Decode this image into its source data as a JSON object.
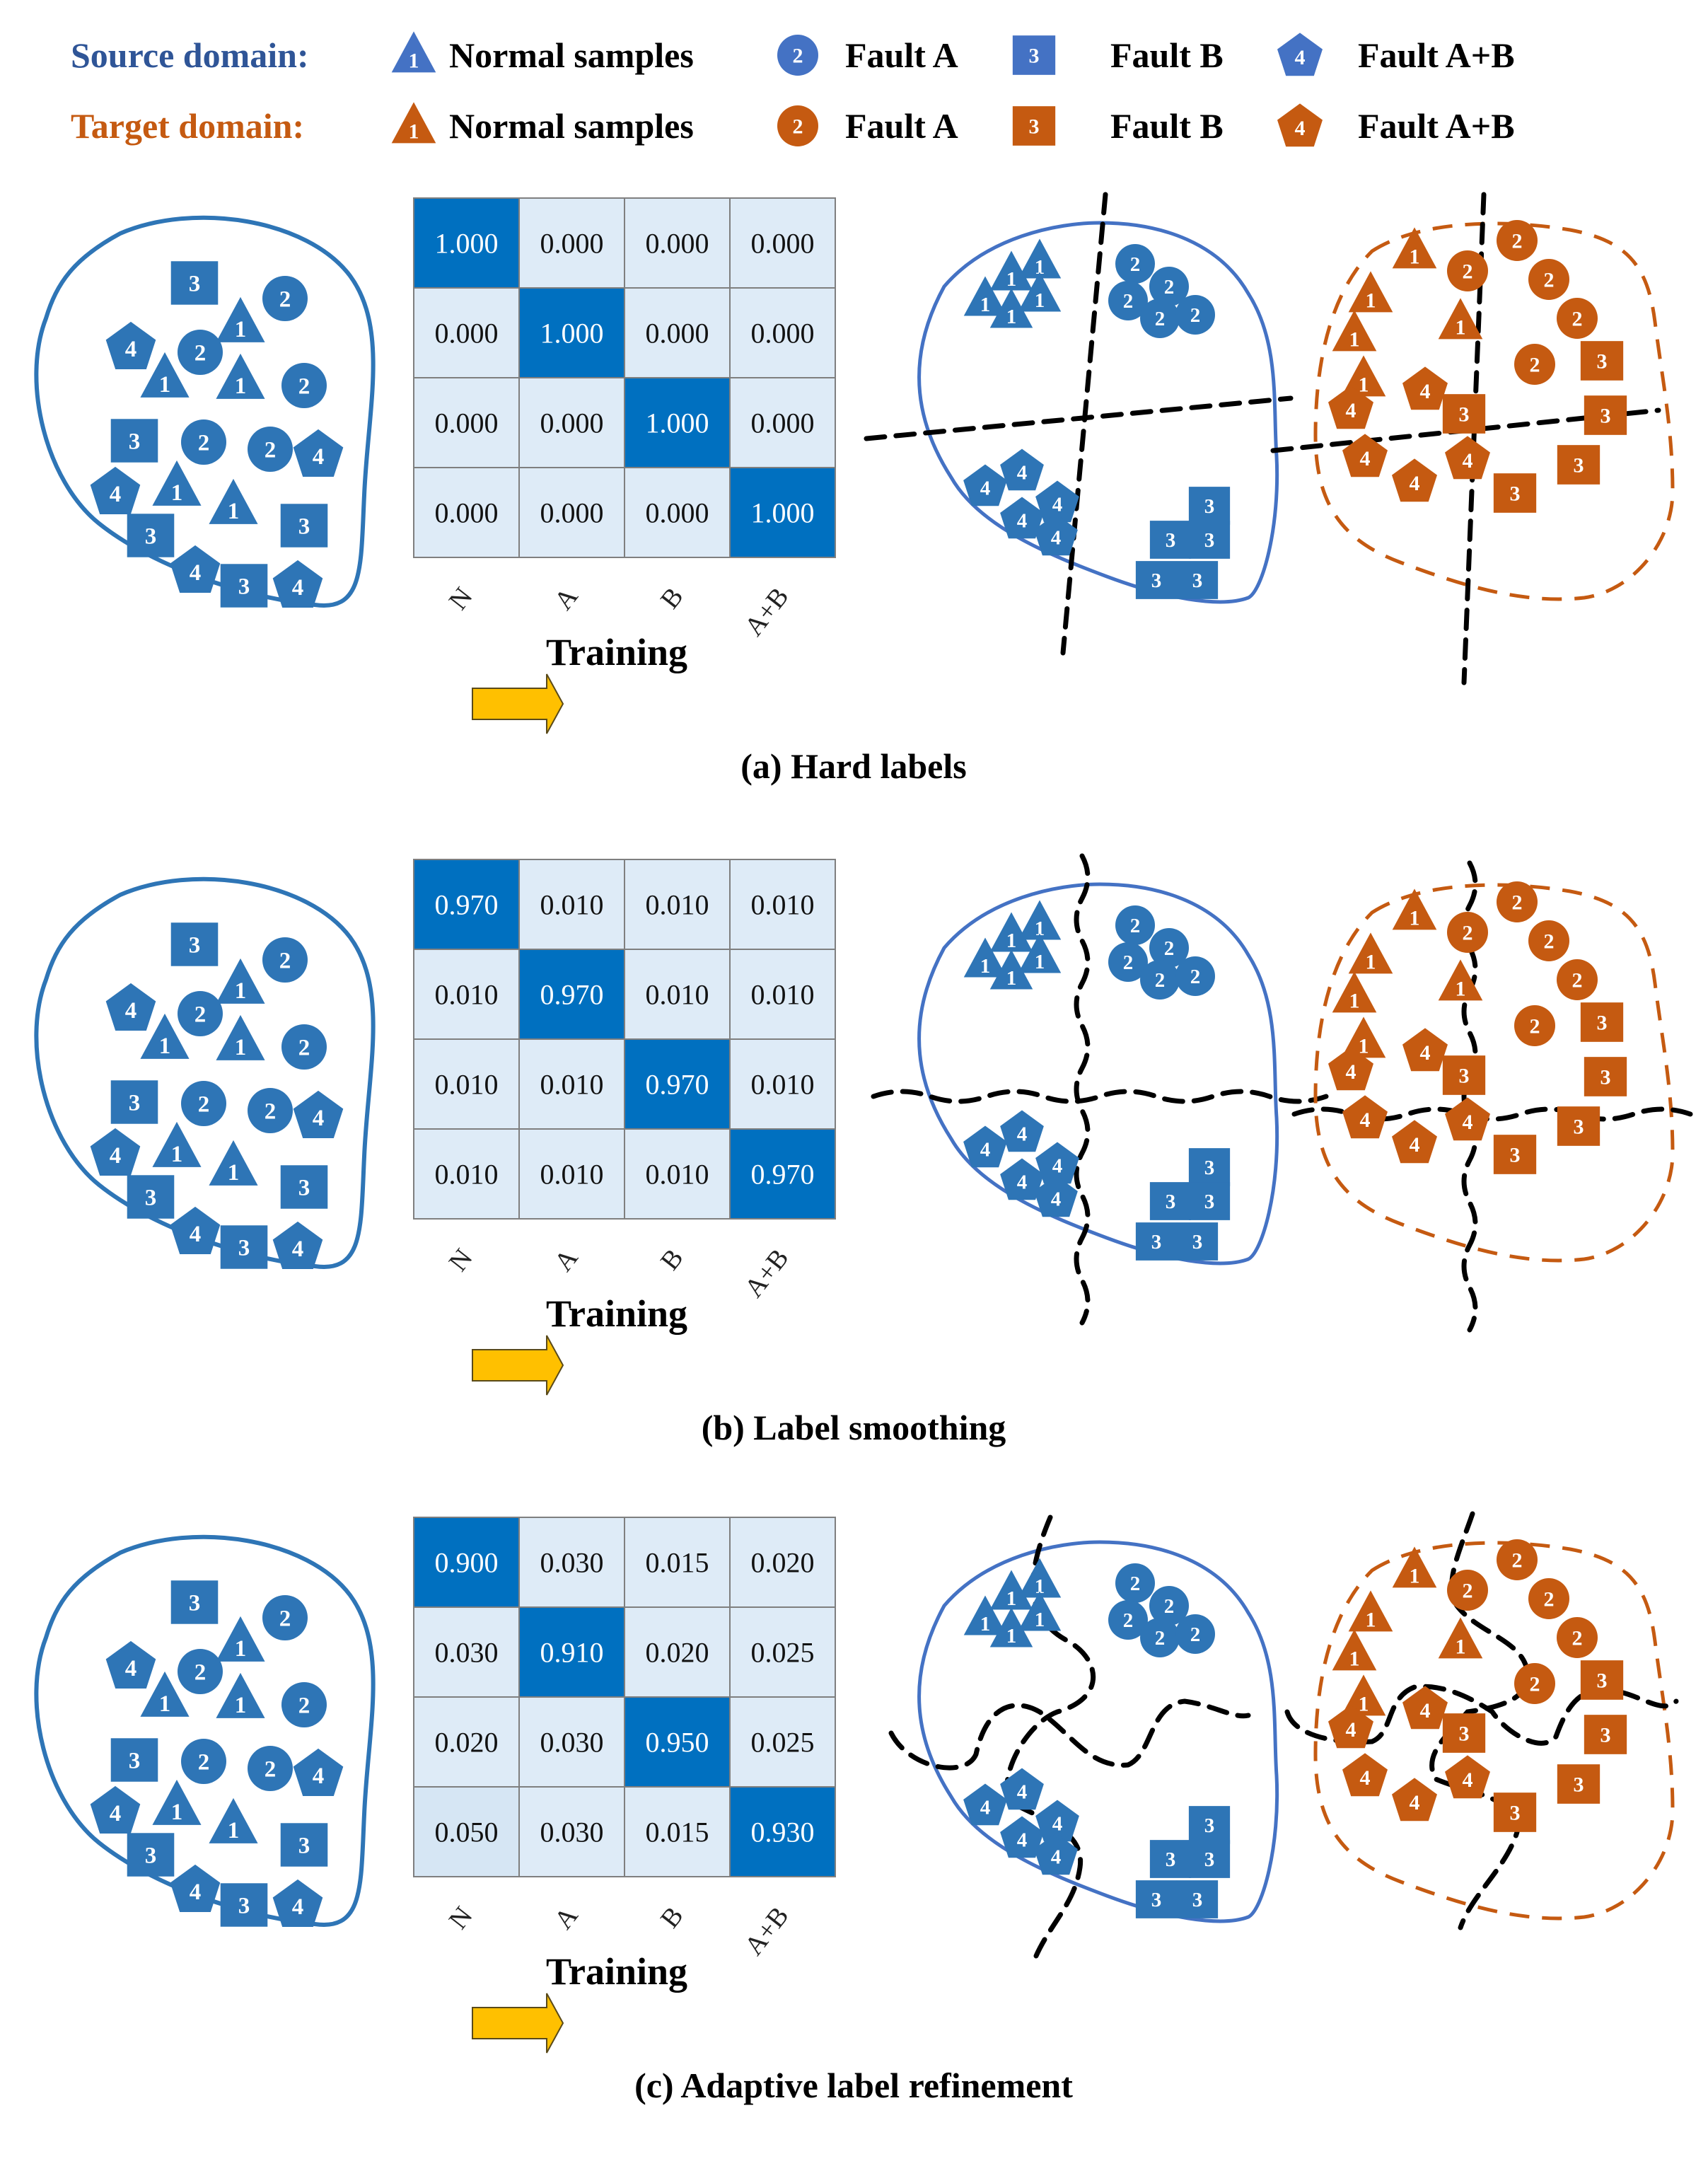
{
  "colors": {
    "source": "#2E75B6",
    "source_legend": "#4472C4",
    "source_title": "#2F5597",
    "target": "#C55A11",
    "target_title": "#C55A11",
    "matrix_dark": "#0070C0",
    "matrix_light": "#DEEBF7",
    "matrix_grid": "#7F7F7F",
    "arrow_fill": "#FFC000",
    "boundary": "#000000"
  },
  "legend": {
    "rows": [
      {
        "title": "Source domain:",
        "domain": "source",
        "items": [
          {
            "shape": "triangle",
            "glyph": "1",
            "label": "Normal samples"
          },
          {
            "shape": "circle",
            "glyph": "2",
            "label": "Fault A"
          },
          {
            "shape": "square",
            "glyph": "3",
            "label": "Fault B"
          },
          {
            "shape": "pentagon",
            "glyph": "4",
            "label": "Fault A+B"
          }
        ]
      },
      {
        "title": "Target domain:",
        "domain": "target",
        "items": [
          {
            "shape": "triangle",
            "glyph": "1",
            "label": "Normal samples"
          },
          {
            "shape": "circle",
            "glyph": "2",
            "label": "Fault A"
          },
          {
            "shape": "square",
            "glyph": "3",
            "label": "Fault B"
          },
          {
            "shape": "pentagon",
            "glyph": "4",
            "label": "Fault A+B"
          }
        ]
      }
    ]
  },
  "matrix_axis_labels": [
    "N",
    "A",
    "B",
    "A+B"
  ],
  "training_label": "Training",
  "panels": [
    {
      "id": "a",
      "caption": "(a) Hard labels",
      "boundary_style": "straight",
      "matrix": [
        [
          "1.000",
          "0.000",
          "0.000",
          "0.000"
        ],
        [
          "0.000",
          "1.000",
          "0.000",
          "0.000"
        ],
        [
          "0.000",
          "0.000",
          "1.000",
          "0.000"
        ],
        [
          "0.000",
          "0.000",
          "0.000",
          "1.000"
        ]
      ]
    },
    {
      "id": "b",
      "caption": "(b) Label smoothing",
      "boundary_style": "wavy",
      "matrix": [
        [
          "0.970",
          "0.010",
          "0.010",
          "0.010"
        ],
        [
          "0.010",
          "0.970",
          "0.010",
          "0.010"
        ],
        [
          "0.010",
          "0.010",
          "0.970",
          "0.010"
        ],
        [
          "0.010",
          "0.010",
          "0.010",
          "0.970"
        ]
      ]
    },
    {
      "id": "c",
      "caption": "(c) Adaptive label refinement",
      "boundary_style": "curved",
      "matrix": [
        [
          "0.900",
          "0.030",
          "0.015",
          "0.020"
        ],
        [
          "0.030",
          "0.910",
          "0.020",
          "0.025"
        ],
        [
          "0.020",
          "0.030",
          "0.950",
          "0.025"
        ],
        [
          "0.050",
          "0.030",
          "0.015",
          "0.930"
        ]
      ]
    }
  ],
  "chart_data": {
    "type": "heatmap",
    "title": "Label distributions under three labeling strategies",
    "row_labels": [
      "N",
      "A",
      "B",
      "A+B"
    ],
    "col_labels": [
      "N",
      "A",
      "B",
      "A+B"
    ],
    "matrices": [
      {
        "name": "(a) Hard labels",
        "values": [
          [
            1.0,
            0.0,
            0.0,
            0.0
          ],
          [
            0.0,
            1.0,
            0.0,
            0.0
          ],
          [
            0.0,
            0.0,
            1.0,
            0.0
          ],
          [
            0.0,
            0.0,
            0.0,
            1.0
          ]
        ]
      },
      {
        "name": "(b) Label smoothing",
        "values": [
          [
            0.97,
            0.01,
            0.01,
            0.01
          ],
          [
            0.01,
            0.97,
            0.01,
            0.01
          ],
          [
            0.01,
            0.01,
            0.97,
            0.01
          ],
          [
            0.01,
            0.01,
            0.01,
            0.97
          ]
        ]
      },
      {
        "name": "(c) Adaptive label refinement",
        "values": [
          [
            0.9,
            0.03,
            0.015,
            0.02
          ],
          [
            0.03,
            0.91,
            0.02,
            0.025
          ],
          [
            0.02,
            0.03,
            0.95,
            0.025
          ],
          [
            0.05,
            0.03,
            0.015,
            0.93
          ]
        ]
      }
    ]
  }
}
